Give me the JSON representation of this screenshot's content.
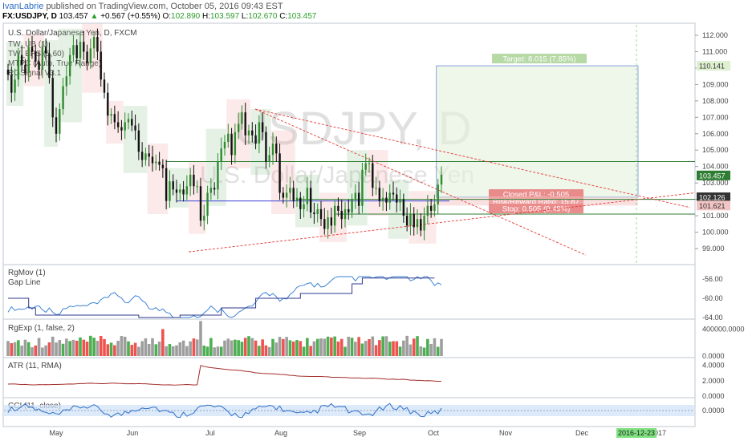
{
  "header": {
    "author": "IvanLabrie",
    "published": "published on TradingView.com, October 05, 2016 09:43 EST",
    "symbol": "FX:USDJPY, D",
    "last": "103.457",
    "change": "+0.567 (+0.55%)",
    "o_label": "O:",
    "o": "102.890",
    "h_label": "H:",
    "h": "103.597",
    "l_label": "L:",
    "l": "102.670",
    "c_label": "C:",
    "c": "103.457"
  },
  "legend": {
    "title": "U.S. Dollar/Japanese Yen, D, FXCM",
    "items": [
      "TW_UB (1)",
      "TW_EPS (5,60)",
      "MTPC (Auto, True Range)",
      "RGSignal V3.1"
    ]
  },
  "watermark": {
    "symbol": "USDJPY, D",
    "name": "U.S. Dollar/Japanese Yen"
  },
  "position": {
    "target": "Target: 8.015 (7.85%)",
    "closed_pnl": "Closed P&L: -0.505",
    "rr": "Risk/Reward Ratio: 15.87",
    "stop": "Stop: 0.505 (0.49%)",
    "entry": 102.126,
    "target_price": 110.141,
    "stop_price": 101.621
  },
  "price_badges": [
    {
      "text": "110.141",
      "value": 110.141,
      "color": "#dff0d0",
      "fg": "#333"
    },
    {
      "text": "103.457",
      "value": 103.457,
      "color": "#2e7d32",
      "fg": "#fff"
    },
    {
      "text": "102.126",
      "value": 102.126,
      "color": "#333333",
      "fg": "#fff"
    },
    {
      "text": "101.621",
      "value": 101.621,
      "color": "#f2c4c4",
      "fg": "#333"
    }
  ],
  "time_badge": "2016-12-23",
  "panes": {
    "rgmov": {
      "title": "RgMov (1)",
      "sub": "Gap Line",
      "ticks": [
        "-56.00",
        "-60.00",
        "-64.00"
      ],
      "tick_values": [
        -56,
        -60,
        -64
      ]
    },
    "rgexp": {
      "title": "RgExp (1, false, 2)",
      "ticks": [
        "400000.0000",
        "0.0000"
      ],
      "tick_values": [
        400000,
        0
      ]
    },
    "atr": {
      "title": "ATR (11, RMA)",
      "ticks": [
        "4.0000",
        "2.0000",
        "0.0000"
      ],
      "tick_values": [
        4,
        2,
        0
      ]
    },
    "cci": {
      "title": "CCI (11, close)",
      "ticks": [
        "0.0000"
      ],
      "tick_values": [
        0
      ]
    }
  },
  "colors": {
    "up": "#2e8b2e",
    "down": "#d32f2f",
    "blue_line": "#3b82d6",
    "dark_line": "#2d3a8c",
    "atr": "#a52a2a"
  },
  "chart_data": {
    "type": "candlestick",
    "symbol": "USDJPY",
    "timeframe": "D",
    "y_ticks": [
      99,
      100,
      101,
      102,
      103,
      104,
      105,
      106,
      107,
      108,
      109,
      110,
      111,
      112
    ],
    "y_tick_labels": [
      "99.000",
      "100.000",
      "101.000",
      "102.000",
      "103.000",
      "104.000",
      "105.000",
      "106.000",
      "107.000",
      "108.000",
      "109.000",
      "110.000",
      "111.000",
      "112.000"
    ],
    "ylim": [
      98.4,
      112.5
    ],
    "x_labels": [
      "May",
      "Jun",
      "Jul",
      "Aug",
      "Sep",
      "Oct",
      "Nov",
      "Dec",
      "2017"
    ],
    "close": [
      109.6,
      108.5,
      109.3,
      110.8,
      110.2,
      109.7,
      111.3,
      111.0,
      110.4,
      109.9,
      111.3,
      110.9,
      109.4,
      107.0,
      106.0,
      107.5,
      108.9,
      109.5,
      110.8,
      111.4,
      110.6,
      111.6,
      111.0,
      110.3,
      111.2,
      111.9,
      111.0,
      109.3,
      108.5,
      107.1,
      107.2,
      106.7,
      106.4,
      106.2,
      106.7,
      106.9,
      106.5,
      106.2,
      104.9,
      104.4,
      104.8,
      104.6,
      104.2,
      104.3,
      104.1,
      103.9,
      101.9,
      103.1,
      102.6,
      102.4,
      102.6,
      102.3,
      102.8,
      103.5,
      102.8,
      102.8,
      100.7,
      101.0,
      102.4,
      102.7,
      102.6,
      104.3,
      105.1,
      105.5,
      106.0,
      104.7,
      106.1,
      106.6,
      107.3,
      105.9,
      106.2,
      105.9,
      105.4,
      106.7,
      106.1,
      104.3,
      104.7,
      105.4,
      104.8,
      102.4,
      102.1,
      102.4,
      102.7,
      101.9,
      102.1,
      101.4,
      101.7,
      102.7,
      101.2,
      101.1,
      101.4,
      100.8,
      100.2,
      100.9,
      100.4,
      101.6,
      101.3,
      100.8,
      101.4,
      101.2,
      102.0,
      102.4,
      101.6,
      103.8,
      104.2,
      104.2,
      102.7,
      102.7,
      101.9,
      102.1,
      101.8,
      102.4,
      102.3,
      101.8,
      102.0,
      101.0,
      100.4,
      101.1,
      100.3,
      100.8,
      100.1,
      101.0,
      101.6,
      101.3,
      101.7,
      102.9,
      103.5
    ],
    "candle_interval": "daily",
    "period": "April 2016 – October 05 2016"
  }
}
